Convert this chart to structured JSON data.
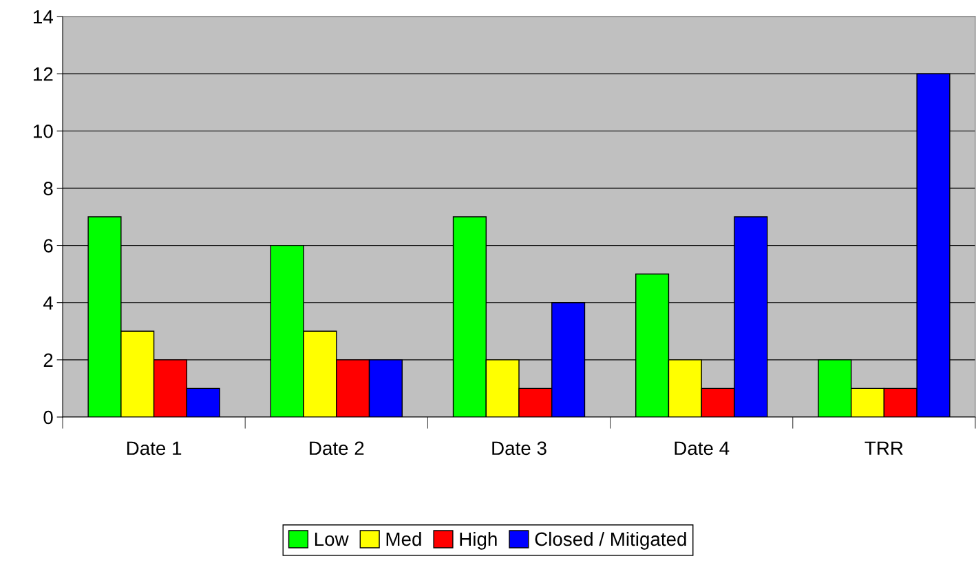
{
  "chart_data": {
    "type": "bar",
    "categories": [
      "Date 1",
      "Date 2",
      "Date 3",
      "Date 4",
      "TRR"
    ],
    "series": [
      {
        "name": "Low",
        "color": "#00ff00",
        "values": [
          7,
          6,
          7,
          5,
          2
        ]
      },
      {
        "name": "Med",
        "color": "#ffff00",
        "values": [
          3,
          3,
          2,
          2,
          1
        ]
      },
      {
        "name": "High",
        "color": "#ff0000",
        "values": [
          2,
          2,
          1,
          1,
          1
        ]
      },
      {
        "name": "Closed / Mitigated",
        "color": "#0000ff",
        "values": [
          1,
          2,
          4,
          7,
          12
        ]
      }
    ],
    "ylim": [
      0,
      14
    ],
    "yticks": [
      0,
      2,
      4,
      6,
      8,
      10,
      12,
      14
    ],
    "grid": "y",
    "legend": "bottom"
  }
}
